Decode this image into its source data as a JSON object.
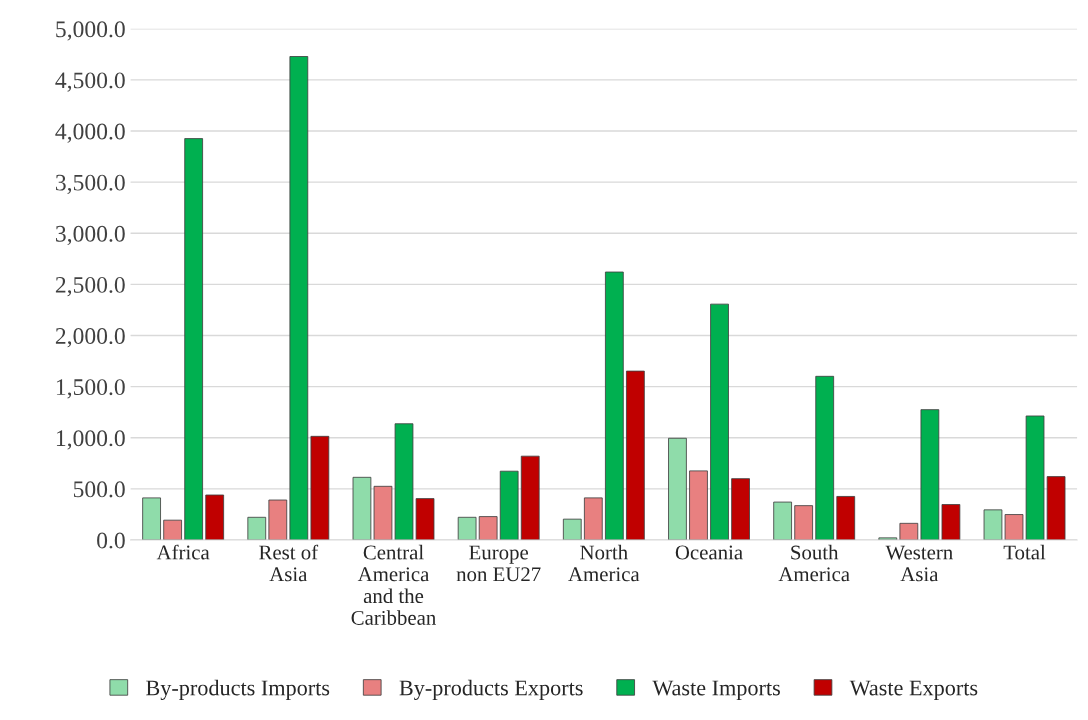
{
  "chart_data": {
    "type": "bar",
    "categories": [
      "Africa",
      "Rest of\nAsia",
      "Central\nAmerica\nand the\nCaribbean",
      "Europe\nnon EU27",
      "North\nAmerica",
      "Oceania",
      "South\nAmerica",
      "Western\nAsia",
      "Total"
    ],
    "series": [
      {
        "name": "By-products Imports",
        "color": "#8fdcaa",
        "values": [
          412,
          222,
          613,
          222,
          204,
          995,
          371,
          21,
          295
        ]
      },
      {
        "name": "By-products Exports",
        "color": "#e88080",
        "values": [
          194,
          391,
          525,
          229,
          412,
          676,
          336,
          163,
          249
        ]
      },
      {
        "name": "Waste Imports",
        "color": "#00b050",
        "values": [
          3926,
          4729,
          1137,
          673,
          2621,
          2307,
          1601,
          1275,
          1213
        ]
      },
      {
        "name": "Waste Exports",
        "color": "#c00000",
        "values": [
          440,
          1014,
          405,
          820,
          1652,
          600,
          426,
          347,
          620
        ]
      }
    ],
    "ylim": [
      0,
      5000
    ],
    "yticks": [
      {
        "value": 0,
        "label": "0.0"
      },
      {
        "value": 500,
        "label": "500.0"
      },
      {
        "value": 1000,
        "label": "1,000.0"
      },
      {
        "value": 1500,
        "label": "1,500.0"
      },
      {
        "value": 2000,
        "label": "2,000.0"
      },
      {
        "value": 2500,
        "label": "2,500.0"
      },
      {
        "value": 3000,
        "label": "3,000.0"
      },
      {
        "value": 3500,
        "label": "3,500.0"
      },
      {
        "value": 4000,
        "label": "4,000.0"
      },
      {
        "value": 4500,
        "label": "4,500.0"
      },
      {
        "value": 5000,
        "label": "5,000.0"
      }
    ],
    "grid": "y",
    "legend": "bottom"
  }
}
